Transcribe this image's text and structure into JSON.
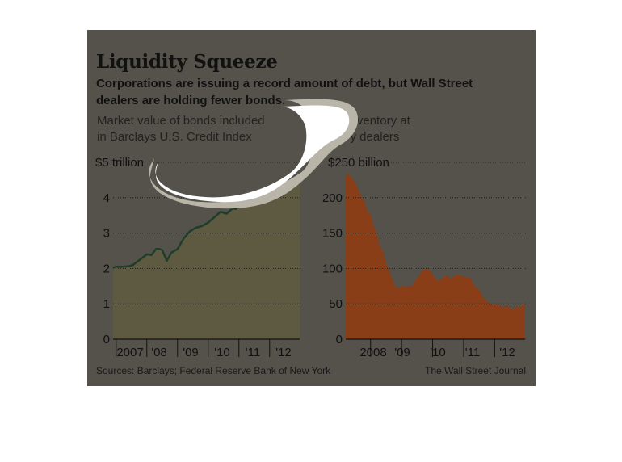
{
  "title": "Liquidity Squeeze",
  "subtitle": {
    "line1": "Corporations are issuing a record amount of debt, but Wall Street",
    "line2": "dealers are holding fewer bonds."
  },
  "source": "Sources: Barclays; Federal Reserve Bank of New York",
  "credit": "The Wall Street Journal",
  "colors": {
    "background": "#55524b",
    "left_line": "#1e3e29",
    "left_line_recent": "#2ba66a",
    "left_fill": "#5e5941",
    "right_fill": "#8a3e17",
    "scribble": "#ffffff"
  },
  "chart_data": [
    {
      "type": "area",
      "label_lines": [
        "Market value of bonds included",
        "in Barclays U.S. Credit Index"
      ],
      "ylim": [
        0,
        5
      ],
      "yticks": [
        0,
        1,
        2,
        3,
        4,
        5
      ],
      "ytick_labels": [
        "0",
        "1",
        "2",
        "3",
        "4",
        "$5 trillion"
      ],
      "xlim": [
        2006.9,
        2012.98
      ],
      "xticks": [
        2007,
        2008,
        2009,
        2010,
        2011,
        2012
      ],
      "xtick_labels": [
        "2007",
        "'08",
        "'09",
        "'10",
        "'11",
        "'12"
      ],
      "grid": true,
      "series": [
        {
          "x": [
            2006.9,
            2007.0,
            2007.2,
            2007.4,
            2007.55,
            2007.7,
            2007.85,
            2008.0,
            2008.15,
            2008.3,
            2008.4,
            2008.5,
            2008.65,
            2008.8,
            2009.0,
            2009.2,
            2009.4,
            2009.6,
            2009.8,
            2010.0,
            2010.2,
            2010.4,
            2010.6,
            2010.8,
            2010.9,
            2011.0,
            2011.2,
            2011.4,
            2011.6,
            2011.8,
            2012.0,
            2012.2,
            2012.4,
            2012.6,
            2012.8,
            2012.98
          ],
          "y": [
            2.02,
            2.05,
            2.05,
            2.06,
            2.1,
            2.2,
            2.3,
            2.4,
            2.38,
            2.55,
            2.55,
            2.52,
            2.22,
            2.45,
            2.55,
            2.85,
            3.05,
            3.15,
            3.2,
            3.3,
            3.45,
            3.6,
            3.55,
            3.7,
            3.68,
            3.8,
            3.9,
            3.92,
            4.0,
            4.05,
            4.1,
            4.2,
            4.3,
            4.35,
            4.45,
            4.55
          ]
        }
      ]
    },
    {
      "type": "area",
      "label_lines": [
        "Bond inventory at",
        "primary dealers"
      ],
      "ylim": [
        0,
        250
      ],
      "yticks": [
        0,
        50,
        100,
        150,
        200,
        250
      ],
      "ytick_labels": [
        "0",
        "50",
        "100",
        "150",
        "200",
        "$250 billion"
      ],
      "xlim": [
        2007.2,
        2012.98
      ],
      "xticks": [
        2008,
        2009,
        2010,
        2011,
        2012
      ],
      "xtick_labels": [
        "2008",
        "'09",
        "'10",
        "'11",
        "'12"
      ],
      "grid": true,
      "series": [
        {
          "x": [
            2007.2,
            2007.28,
            2007.38,
            2007.5,
            2007.6,
            2007.7,
            2007.8,
            2007.9,
            2008.0,
            2008.1,
            2008.2,
            2008.3,
            2008.4,
            2008.5,
            2008.6,
            2008.7,
            2008.8,
            2008.9,
            2009.0,
            2009.1,
            2009.2,
            2009.3,
            2009.4,
            2009.55,
            2009.7,
            2009.85,
            2010.0,
            2010.1,
            2010.2,
            2010.35,
            2010.5,
            2010.6,
            2010.75,
            2010.9,
            2011.05,
            2011.2,
            2011.35,
            2011.5,
            2011.65,
            2011.8,
            2011.95,
            2012.1,
            2012.25,
            2012.4,
            2012.55,
            2012.7,
            2012.85,
            2012.98
          ],
          "y": [
            230,
            235,
            228,
            222,
            212,
            202,
            195,
            182,
            176,
            160,
            150,
            132,
            124,
            108,
            96,
            85,
            74,
            72,
            76,
            73,
            76,
            74,
            80,
            90,
            98,
            100,
            92,
            85,
            82,
            88,
            90,
            85,
            92,
            90,
            88,
            88,
            75,
            70,
            58,
            52,
            48,
            50,
            45,
            48,
            42,
            45,
            46,
            52
          ]
        }
      ]
    }
  ]
}
